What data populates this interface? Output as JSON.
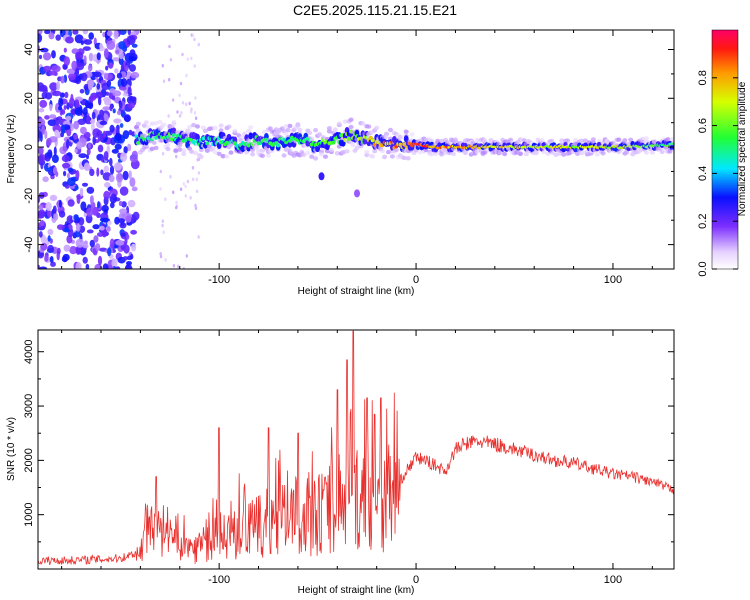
{
  "title": "C2E5.2025.115.21.15.E21",
  "chart_data": [
    {
      "type": "heatmap",
      "xlabel": "Height of straight line (km)",
      "ylabel": "Frequency (Hz)",
      "xlim": [
        -192,
        131
      ],
      "ylim": [
        -50,
        48
      ],
      "x_ticks": [
        -100,
        0,
        100
      ],
      "x_tick_labels": [
        "-100",
        "0",
        "100"
      ],
      "y_ticks": [
        -40,
        -20,
        0,
        20,
        40
      ],
      "y_tick_labels": [
        "-40",
        "-20",
        "0",
        "20",
        "40"
      ],
      "colorbar": {
        "label": "Normalized spectral amplitude",
        "range": [
          0,
          1
        ],
        "ticks": [
          0.0,
          0.2,
          0.4,
          0.6,
          0.8
        ],
        "tick_labels": [
          "0.0",
          "0.2",
          "0.4",
          "0.6",
          "0.8"
        ]
      },
      "ridge": {
        "x": [
          -142,
          -130,
          -120,
          -110,
          -100,
          -90,
          -80,
          -70,
          -60,
          -50,
          -40,
          -33,
          -25,
          -20,
          -10,
          0,
          10,
          20,
          40,
          60,
          80,
          100,
          120,
          131
        ],
        "frequency": [
          3,
          5,
          4,
          2,
          3,
          1,
          3,
          2,
          3,
          1,
          3,
          5,
          3,
          2,
          1,
          1,
          0,
          0,
          0,
          0,
          0,
          0,
          0.5,
          1
        ],
        "amplitude": [
          0.5,
          0.55,
          0.55,
          0.5,
          0.5,
          0.5,
          0.55,
          0.5,
          0.55,
          0.55,
          0.6,
          0.65,
          0.7,
          0.8,
          0.85,
          0.9,
          0.85,
          0.8,
          0.75,
          0.7,
          0.7,
          0.7,
          0.6,
          0.55
        ]
      },
      "isolated_blobs": [
        {
          "x": -48,
          "frequency": -12,
          "amplitude": 0.25
        },
        {
          "x": -30,
          "frequency": -19,
          "amplitude": 0.15
        }
      ]
    },
    {
      "type": "line",
      "xlabel": "Height of straight line (km)",
      "ylabel": "SNR (10 * v/v)",
      "xlim": [
        -192,
        131
      ],
      "ylim": [
        0,
        4400
      ],
      "x_ticks": [
        -100,
        0,
        100
      ],
      "x_tick_labels": [
        "-100",
        "0",
        "100"
      ],
      "y_ticks": [
        1000,
        2000,
        3000,
        4000
      ],
      "y_tick_labels": [
        "1000",
        "2000",
        "3000",
        "4000"
      ],
      "series": [
        {
          "color": "#e8312e",
          "x": [
            -192,
            -175,
            -160,
            -150,
            -142,
            -135,
            -128,
            -120,
            -110,
            -100,
            -90,
            -80,
            -70,
            -60,
            -50,
            -40,
            -30,
            -20,
            -10,
            -5,
            0,
            5,
            10,
            15,
            20,
            25,
            30,
            40,
            50,
            60,
            70,
            80,
            90,
            100,
            110,
            120,
            131
          ],
          "values": [
            150,
            160,
            180,
            200,
            300,
            800,
            700,
            450,
            500,
            700,
            800,
            900,
            1000,
            1100,
            1200,
            1300,
            1500,
            1500,
            1500,
            1800,
            2050,
            2000,
            1900,
            1800,
            2200,
            2300,
            2350,
            2300,
            2200,
            2100,
            2000,
            1950,
            1850,
            1750,
            1700,
            1600,
            1450
          ]
        }
      ],
      "peaks": [
        {
          "x": -132,
          "value": 1700
        },
        {
          "x": -100,
          "value": 2600
        },
        {
          "x": -75,
          "value": 2600
        },
        {
          "x": -60,
          "value": 2500
        },
        {
          "x": -40,
          "value": 3300
        },
        {
          "x": -35,
          "value": 3850
        },
        {
          "x": -32,
          "value": 4380
        },
        {
          "x": -25,
          "value": 3150
        },
        {
          "x": -18,
          "value": 3150
        }
      ]
    }
  ]
}
